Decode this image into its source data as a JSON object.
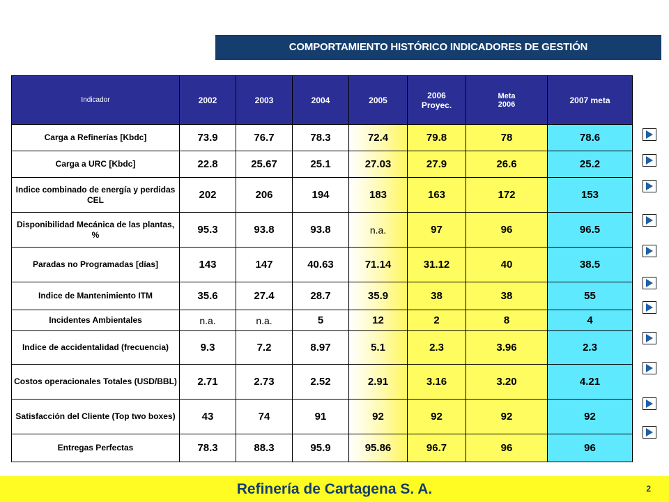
{
  "title": "COMPORTAMIENTO HISTÓRICO INDICADORES DE GESTIÓN",
  "table": {
    "headers": [
      "Indicador",
      "2002",
      "2003",
      "2004",
      "2005",
      "2006 Proyec.",
      "Meta 2006",
      "2007 meta"
    ],
    "rows": [
      {
        "label": "Carga a Refinerías [Kbdc]",
        "values": [
          "73.9",
          "76.7",
          "78.3",
          "72.4",
          "79.8",
          "78",
          "78.6"
        ]
      },
      {
        "label": "Carga a URC [Kbdc]",
        "values": [
          "22.8",
          "25.67",
          "25.1",
          "27.03",
          "27.9",
          "26.6",
          "25.2"
        ]
      },
      {
        "label": "Indice combinado de energía y perdidas CEL",
        "values": [
          "202",
          "206",
          "194",
          "183",
          "163",
          "172",
          "153"
        ]
      },
      {
        "label": "Disponibilidad Mecánica de las plantas, %",
        "values": [
          "95.3",
          "93.8",
          "93.8",
          "n.a.",
          "97",
          "96",
          "96.5"
        ]
      },
      {
        "label": "Paradas no Programadas [días]",
        "values": [
          "143",
          "147",
          "40.63",
          "71.14",
          "31.12",
          "40",
          "38.5"
        ]
      },
      {
        "label": "Indice de Mantenimiento ITM",
        "values": [
          "35.6",
          "27.4",
          "28.7",
          "35.9",
          "38",
          "38",
          "55"
        ]
      },
      {
        "label": "Incidentes Ambientales",
        "values": [
          "n.a.",
          "n.a.",
          "5",
          "12",
          "2",
          "8",
          "4"
        ]
      },
      {
        "label": "Indice de accidentalidad (frecuencia)",
        "values": [
          "9.3",
          "7.2",
          "8.97",
          "5.1",
          "2.3",
          "3.96",
          "2.3"
        ]
      },
      {
        "label": "Costos operacionales Totales (USD/BBL)",
        "values": [
          "2.71",
          "2.73",
          "2.52",
          "2.91",
          "3.16",
          "3.20",
          "4.21"
        ]
      },
      {
        "label": "Satisfacción del Cliente (Top two boxes)",
        "values": [
          "43",
          "74",
          "91",
          "92",
          "92",
          "92",
          "92"
        ]
      },
      {
        "label": "Entregas Perfectas",
        "values": [
          "78.3",
          "88.3",
          "95.9",
          "95.86",
          "96.7",
          "96",
          "96"
        ]
      }
    ]
  },
  "colors": {
    "header_bg": "#2b2f95",
    "title_bg": "#153e6e",
    "col_2006_bg": "#fffc5f",
    "col_2007_bg": "#5fe9ff",
    "footer_bg": "#fffc24"
  },
  "nav_icon": "play-arrow-icon",
  "footer": {
    "company": "Refinería de Cartagena S. A.",
    "page_number": "2"
  }
}
